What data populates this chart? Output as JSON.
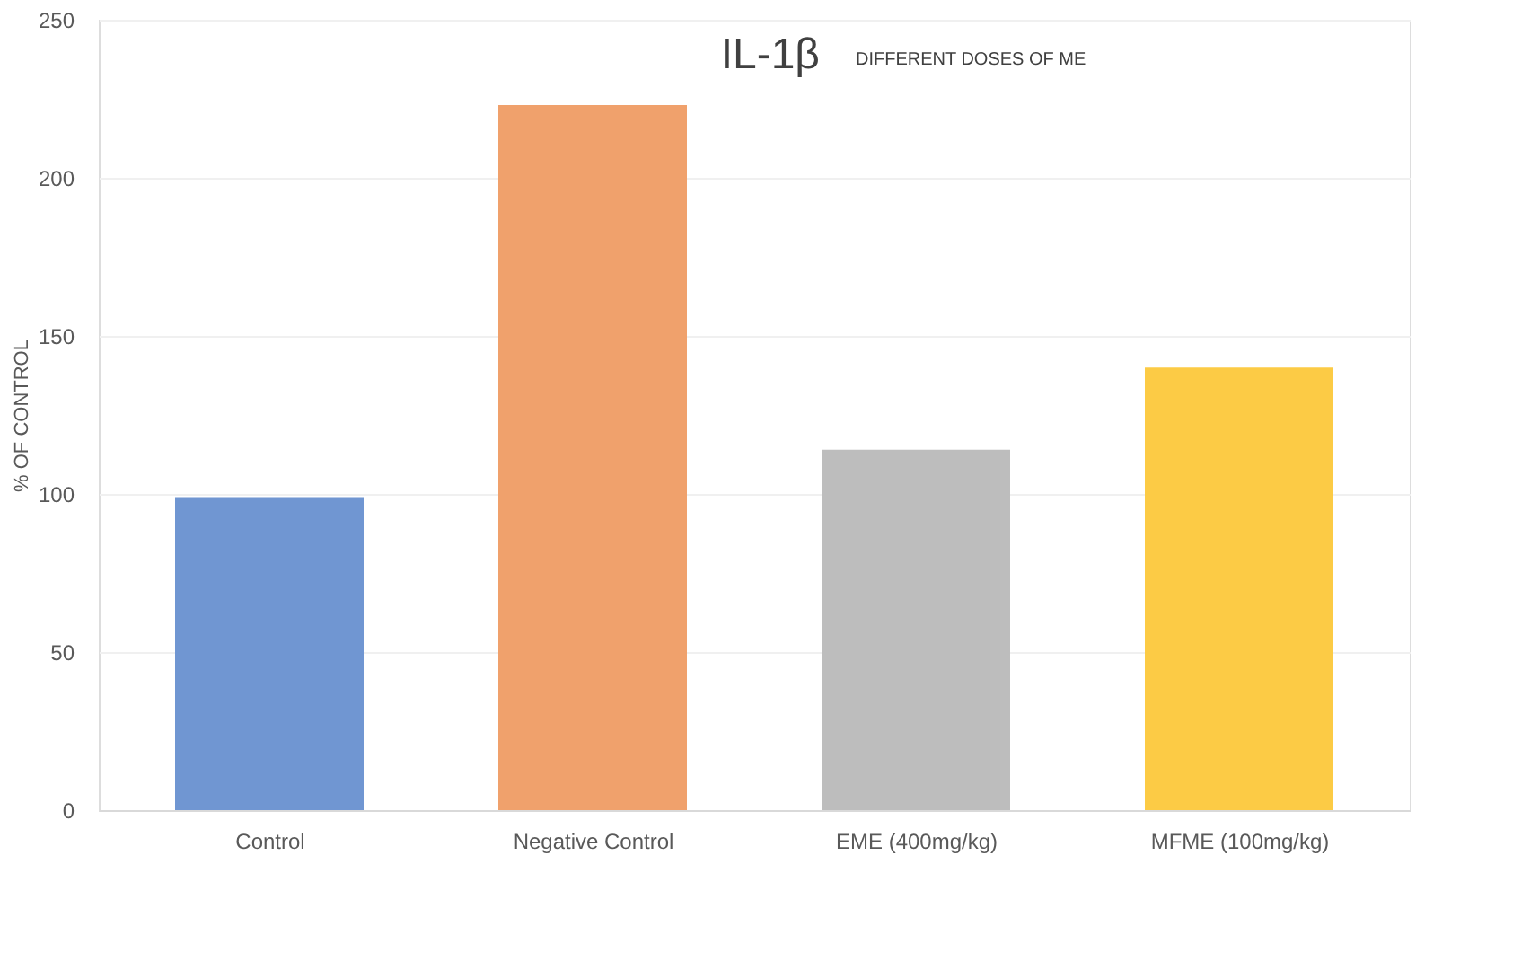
{
  "chart_data": {
    "type": "bar",
    "title": "IL-1β",
    "subtitle": "DIFFERENT DOSES OF ME",
    "ylabel": "% OF CONTROL",
    "categories": [
      "Control",
      "Negative Control",
      "EME (400mg/kg)",
      "MFME (100mg/kg)"
    ],
    "values": [
      99,
      223,
      114,
      140
    ],
    "colors": [
      "#7096d2",
      "#f0a16c",
      "#bdbdbd",
      "#fccb45"
    ],
    "ylim": [
      0,
      250
    ],
    "yticks": [
      0,
      50,
      100,
      150,
      200,
      250
    ],
    "grid": "y"
  }
}
